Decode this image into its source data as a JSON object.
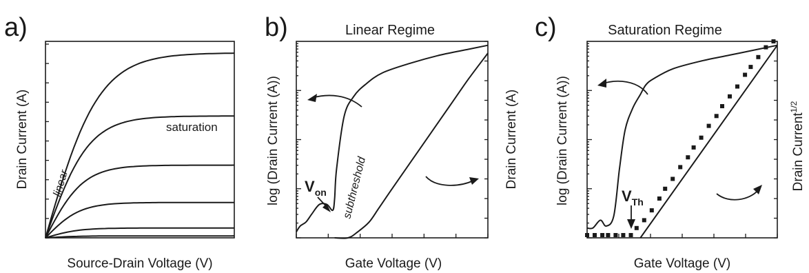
{
  "chart_data": [
    {
      "id": "a",
      "type": "line",
      "panel_label": "a)",
      "title": "",
      "xlabel": "Source-Drain Voltage (V)",
      "ylabel": "Drain Current (A)",
      "annotations": {
        "linear": "linear",
        "saturation": "saturation"
      },
      "x_range": [
        0,
        1
      ],
      "y_range": [
        0,
        1
      ],
      "ticks_only": true,
      "series": [
        {
          "values_sat": 0.94
        },
        {
          "values_sat": 0.62
        },
        {
          "values_sat": 0.37
        },
        {
          "values_sat": 0.18
        },
        {
          "values_sat": 0.05
        },
        {
          "values_sat": 0.01
        }
      ]
    },
    {
      "id": "b",
      "type": "line",
      "panel_label": "b)",
      "title": "Linear Regime",
      "xlabel": "Gate Voltage (V)",
      "ylabel_left": "log (Drain Current (A))",
      "ylabel_right": "Drain Current (A)",
      "annotations": {
        "von_main": "V",
        "von_sub": "on",
        "subthreshold": "subthreshold"
      },
      "x_range": [
        0,
        1
      ],
      "y_range": [
        0,
        1
      ],
      "ticks_only": true,
      "series_log_curve": {
        "x": [
          0,
          0.02,
          0.05,
          0.08,
          0.12,
          0.16,
          0.19,
          0.2,
          0.21,
          0.25,
          0.3,
          0.36,
          0.45,
          0.6,
          0.75,
          0.9,
          1.0
        ],
        "y": [
          0.03,
          0.06,
          0.08,
          0.12,
          0.17,
          0.17,
          0.14,
          0.2,
          0.35,
          0.62,
          0.72,
          0.78,
          0.84,
          0.89,
          0.93,
          0.96,
          0.98
        ]
      },
      "series_linear_curve": {
        "x": [
          0.2,
          0.27,
          0.32,
          0.38,
          0.43,
          0.5,
          0.6,
          0.7,
          0.8,
          0.9,
          1.0
        ],
        "y": [
          0.0,
          0.0,
          0.03,
          0.08,
          0.15,
          0.25,
          0.39,
          0.53,
          0.67,
          0.81,
          0.94
        ]
      }
    },
    {
      "id": "c",
      "type": "line",
      "panel_label": "c)",
      "title": "Saturation Regime",
      "xlabel": "Gate Voltage (V)",
      "ylabel_left": "log (Drain Current (A))",
      "ylabel_right": "Drain Current",
      "ylabel_right_sup": "1/2",
      "annotations": {
        "vth_main": "V",
        "vth_sub": "Th"
      },
      "x_range": [
        0,
        1
      ],
      "y_range": [
        0,
        1
      ],
      "ticks_only": true,
      "series_log_curve": {
        "x": [
          0,
          0.03,
          0.07,
          0.1,
          0.14,
          0.17,
          0.2,
          0.24,
          0.28,
          0.31,
          0.35,
          0.45,
          0.6,
          0.75,
          0.9,
          1.0
        ],
        "y": [
          0.05,
          0.05,
          0.09,
          0.06,
          0.11,
          0.35,
          0.55,
          0.66,
          0.73,
          0.78,
          0.81,
          0.86,
          0.9,
          0.93,
          0.96,
          0.98
        ]
      },
      "series_sqrt_markers": {
        "x": [
          0.0,
          0.04,
          0.08,
          0.11,
          0.15,
          0.19,
          0.23,
          0.26,
          0.3,
          0.34,
          0.38,
          0.41,
          0.45,
          0.49,
          0.53,
          0.56,
          0.6,
          0.64,
          0.68,
          0.71,
          0.75,
          0.79,
          0.83,
          0.86,
          0.9,
          0.94,
          0.98
        ],
        "y": [
          0.0,
          0.0,
          0.0,
          0.0,
          0.0,
          0.0,
          0.01,
          0.05,
          0.09,
          0.14,
          0.2,
          0.25,
          0.3,
          0.36,
          0.41,
          0.46,
          0.51,
          0.57,
          0.62,
          0.67,
          0.72,
          0.77,
          0.83,
          0.87,
          0.92,
          0.97,
          1.0
        ]
      },
      "series_fit_line": {
        "x": [
          0.28,
          1.0
        ],
        "y": [
          0.0,
          0.98
        ]
      }
    }
  ]
}
